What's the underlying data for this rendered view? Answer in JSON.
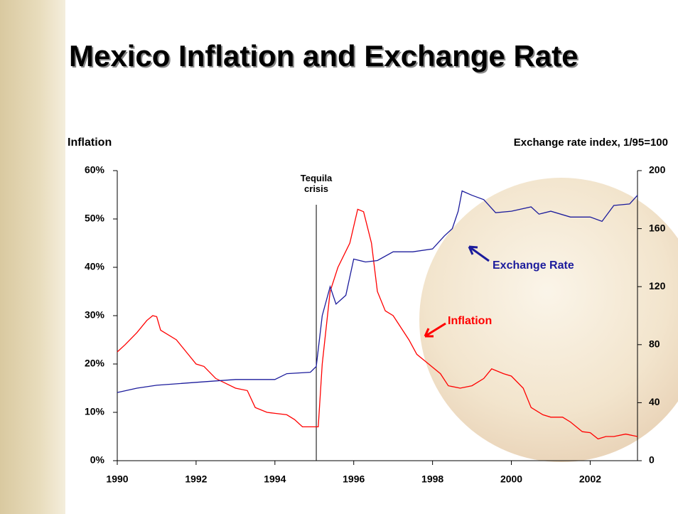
{
  "chart_data": {
    "type": "line",
    "title": "Mexico Inflation and Exchange Rate",
    "y_label": "Inflation",
    "y2_label": "Exchange rate index, 1/95=100",
    "xlim": [
      1990,
      2003.2
    ],
    "xticks": [
      1990,
      1992,
      1994,
      1996,
      1998,
      2000,
      2002
    ],
    "ylim": [
      0,
      60
    ],
    "yticks": [
      {
        "value": 0,
        "label": "0%"
      },
      {
        "value": 10,
        "label": "10%"
      },
      {
        "value": 20,
        "label": "20%"
      },
      {
        "value": 30,
        "label": "30%"
      },
      {
        "value": 40,
        "label": "40%"
      },
      {
        "value": 50,
        "label": "50%"
      },
      {
        "value": 60,
        "label": "60%"
      }
    ],
    "y2lim": [
      0,
      200
    ],
    "y2ticks": [
      0,
      40,
      80,
      120,
      160,
      200
    ],
    "series": [
      {
        "name": "Inflation",
        "color": "#ff0000",
        "axis": "y",
        "x": [
          1990.0,
          1990.2,
          1990.5,
          1990.75,
          1990.9,
          1991.0,
          1991.1,
          1991.5,
          1991.8,
          1992.0,
          1992.2,
          1992.5,
          1993.0,
          1993.3,
          1993.5,
          1993.8,
          1994.0,
          1994.3,
          1994.5,
          1994.7,
          1994.9,
          1995.1,
          1995.2,
          1995.4,
          1995.6,
          1995.9,
          1996.1,
          1996.25,
          1996.45,
          1996.6,
          1996.8,
          1997.0,
          1997.2,
          1997.4,
          1997.6,
          1997.9,
          1998.2,
          1998.4,
          1998.7,
          1999.0,
          1999.3,
          1999.5,
          1999.8,
          2000.0,
          2000.3,
          2000.5,
          2000.8,
          2001.0,
          2001.3,
          2001.5,
          2001.8,
          2002.0,
          2002.2,
          2002.4,
          2002.6,
          2002.9,
          2003.2
        ],
        "values": [
          22.5,
          24,
          26.5,
          29,
          30,
          29.8,
          27,
          25,
          22,
          20,
          19.5,
          17,
          15,
          14.5,
          11,
          10,
          9.8,
          9.5,
          8.5,
          7,
          7,
          7,
          20,
          35,
          40,
          45,
          52,
          51.5,
          45,
          35,
          31,
          30,
          27.5,
          25,
          22,
          20,
          18,
          15.5,
          15,
          15.5,
          17,
          19,
          18,
          17.5,
          15,
          11,
          9.5,
          9,
          9,
          8,
          6,
          5.8,
          4.5,
          5,
          5,
          5.5,
          5
        ]
      },
      {
        "name": "Exchange Rate",
        "color": "#1c1c9c",
        "axis": "y2",
        "x": [
          1990.0,
          1990.5,
          1991.0,
          1991.5,
          1992.0,
          1993.0,
          1994.0,
          1994.3,
          1994.9,
          1995.05,
          1995.2,
          1995.4,
          1995.55,
          1995.8,
          1996.0,
          1996.3,
          1996.6,
          1997.0,
          1997.5,
          1998.0,
          1998.3,
          1998.5,
          1998.65,
          1998.75,
          1999.0,
          1999.3,
          1999.6,
          2000.0,
          2000.5,
          2000.7,
          2001.0,
          2001.5,
          2002.0,
          2002.3,
          2002.6,
          2003.0,
          2003.2
        ],
        "values": [
          47,
          50,
          52,
          53,
          54,
          56,
          56,
          60,
          61,
          65,
          100,
          120,
          108,
          114,
          139,
          137,
          138,
          144,
          144,
          146,
          155,
          160,
          172,
          186,
          183,
          180,
          171,
          172,
          175,
          170,
          172,
          168,
          168,
          165,
          176,
          177,
          183
        ]
      }
    ],
    "annotations": [
      {
        "text": "Tequila crisis",
        "x": 1995.05
      }
    ]
  }
}
